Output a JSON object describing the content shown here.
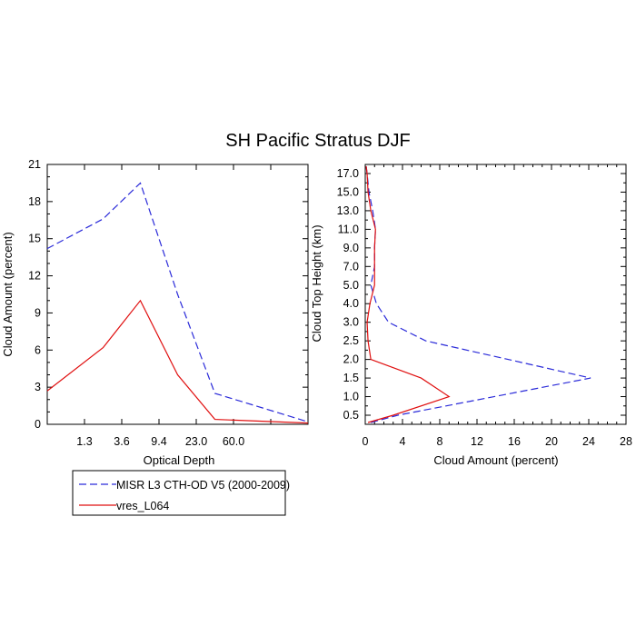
{
  "title": "SH Pacific Stratus DJF",
  "colors": {
    "obs": "#2b2bd9",
    "model": "#e01010"
  },
  "legend": [
    {
      "label": "MISR L3 CTH-OD V5 (2000-2009)",
      "color": "#2b2bd9",
      "dash": true
    },
    {
      "label": "vres_L064",
      "color": "#e01010",
      "dash": false
    }
  ],
  "chart_data": [
    {
      "type": "line",
      "xlabel": "Optical Depth",
      "ylabel": "Cloud Amount (percent)",
      "xticklabels": [
        "1.3",
        "3.6",
        "9.4",
        "23.0",
        "60.0"
      ],
      "yticklabels": [
        "0",
        "3",
        "6",
        "9",
        "12",
        "15",
        "18",
        "21"
      ],
      "ylim": [
        0,
        21
      ],
      "x_bins": 7,
      "series": [
        {
          "name": "MISR L3 CTH-OD V5 (2000-2009)",
          "values": [
            14.2,
            16.6,
            19.5,
            10.5,
            2.5,
            0.2
          ]
        },
        {
          "name": "vres_L064",
          "values": [
            2.7,
            6.2,
            10.0,
            4.0,
            0.4,
            0.1
          ]
        }
      ]
    },
    {
      "type": "line",
      "xlabel": "Cloud Amount (percent)",
      "ylabel": "Cloud Top Height (km)",
      "xticklabels": [
        "0",
        "4",
        "8",
        "12",
        "16",
        "20",
        "24",
        "28"
      ],
      "xlim": [
        0,
        28
      ],
      "yticklabels": [
        "0.5",
        "1.0",
        "1.5",
        "2.0",
        "2.5",
        "3.0",
        "4.0",
        "5.0",
        "7.0",
        "9.0",
        "11.0",
        "13.0",
        "15.0",
        "17.0"
      ],
      "series": [
        {
          "name": "MISR L3 CTH-OD V5 (2000-2009)",
          "points": [
            [
              0.6,
              0
            ],
            [
              3.5,
              1
            ],
            [
              24.2,
              3
            ],
            [
              6.5,
              5
            ],
            [
              2.5,
              6
            ],
            [
              1.2,
              7
            ],
            [
              0.6,
              8
            ],
            [
              1.0,
              9
            ],
            [
              1.0,
              10
            ],
            [
              1.1,
              11
            ],
            [
              0.8,
              12
            ],
            [
              0.4,
              13
            ],
            [
              0.2,
              14
            ],
            [
              0.1,
              15
            ]
          ]
        },
        {
          "name": "vres_L064",
          "points": [
            [
              0.3,
              0
            ],
            [
              3.0,
              1
            ],
            [
              9.0,
              2
            ],
            [
              6.0,
              3
            ],
            [
              0.6,
              4
            ],
            [
              0.3,
              5
            ],
            [
              0.2,
              6
            ],
            [
              0.5,
              7
            ],
            [
              1.0,
              8
            ],
            [
              1.0,
              9
            ],
            [
              1.0,
              10
            ],
            [
              1.1,
              11
            ],
            [
              0.6,
              12
            ],
            [
              0.3,
              13
            ],
            [
              0.2,
              14
            ],
            [
              0.1,
              15
            ]
          ]
        }
      ]
    }
  ]
}
